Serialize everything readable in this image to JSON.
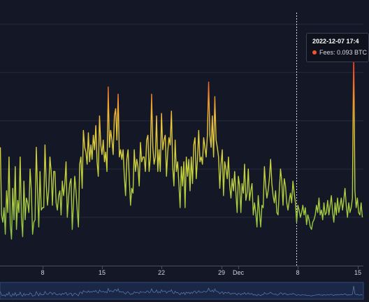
{
  "chart_data": {
    "type": "line",
    "x_axis_ticks": [
      "8",
      "15",
      "22",
      "29",
      "Dec",
      "8",
      "15"
    ],
    "series": [
      {
        "name": "Fees",
        "unit": "BTC",
        "values": [
          0.049,
          0.021,
          0.018,
          0.024,
          0.013,
          0.031,
          0.022,
          0.045,
          0.017,
          0.011,
          0.032,
          0.019,
          0.041,
          0.015,
          0.027,
          0.022,
          0.045,
          0.02,
          0.012,
          0.035,
          0.019,
          0.028,
          0.026,
          0.022,
          0.04,
          0.031,
          0.013,
          0.018,
          0.019,
          0.049,
          0.031,
          0.016,
          0.039,
          0.023,
          0.024,
          0.024,
          0.05,
          0.034,
          0.025,
          0.031,
          0.045,
          0.039,
          0.025,
          0.039,
          0.039,
          0.026,
          0.023,
          0.029,
          0.031,
          0.021,
          0.035,
          0.029,
          0.034,
          0.043,
          0.02,
          0.028,
          0.034,
          0.036,
          0.015,
          0.026,
          0.037,
          0.031,
          0.023,
          0.016,
          0.042,
          0.045,
          0.032,
          0.056,
          0.049,
          0.047,
          0.042,
          0.055,
          0.043,
          0.05,
          0.044,
          0.054,
          0.048,
          0.058,
          0.043,
          0.037,
          0.062,
          0.05,
          0.046,
          0.052,
          0.043,
          0.047,
          0.039,
          0.074,
          0.049,
          0.056,
          0.052,
          0.046,
          0.062,
          0.065,
          0.052,
          0.071,
          0.045,
          0.048,
          0.044,
          0.048,
          0.037,
          0.029,
          0.044,
          0.048,
          0.036,
          0.025,
          0.032,
          0.03,
          0.048,
          0.039,
          0.044,
          0.041,
          0.033,
          0.051,
          0.043,
          0.045,
          0.045,
          0.039,
          0.052,
          0.054,
          0.039,
          0.045,
          0.071,
          0.049,
          0.042,
          0.045,
          0.062,
          0.039,
          0.048,
          0.039,
          0.063,
          0.048,
          0.052,
          0.054,
          0.037,
          0.047,
          0.053,
          0.05,
          0.064,
          0.041,
          0.033,
          0.052,
          0.039,
          0.043,
          0.034,
          0.024,
          0.041,
          0.033,
          0.043,
          0.024,
          0.045,
          0.037,
          0.044,
          0.031,
          0.045,
          0.034,
          0.05,
          0.053,
          0.036,
          0.044,
          0.056,
          0.043,
          0.045,
          0.042,
          0.053,
          0.049,
          0.045,
          0.054,
          0.076,
          0.054,
          0.049,
          0.062,
          0.045,
          0.07,
          0.052,
          0.049,
          0.045,
          0.032,
          0.042,
          0.048,
          0.029,
          0.043,
          0.04,
          0.036,
          0.045,
          0.033,
          0.028,
          0.036,
          0.031,
          0.039,
          0.03,
          0.022,
          0.037,
          0.033,
          0.022,
          0.034,
          0.03,
          0.042,
          0.027,
          0.03,
          0.04,
          0.027,
          0.031,
          0.034,
          0.021,
          0.026,
          0.022,
          0.016,
          0.029,
          0.022,
          0.016,
          0.025,
          0.024,
          0.041,
          0.033,
          0.028,
          0.031,
          0.036,
          0.044,
          0.034,
          0.029,
          0.026,
          0.031,
          0.022,
          0.021,
          0.031,
          0.04,
          0.035,
          0.025,
          0.036,
          0.033,
          0.026,
          0.023,
          0.027,
          0.03,
          0.026,
          0.035,
          0.03,
          0.026,
          0.018,
          0.025,
          0.023,
          0.02,
          0.022,
          0.025,
          0.021,
          0.024,
          0.017,
          0.021,
          0.019,
          0.016,
          0.015,
          0.018,
          0.019,
          0.021,
          0.025,
          0.022,
          0.028,
          0.021,
          0.023,
          0.019,
          0.026,
          0.021,
          0.022,
          0.027,
          0.021,
          0.025,
          0.029,
          0.022,
          0.018,
          0.026,
          0.021,
          0.028,
          0.022,
          0.025,
          0.028,
          0.023,
          0.027,
          0.032,
          0.025,
          0.02,
          0.026,
          0.022,
          0.024,
          0.028,
          0.093,
          0.031,
          0.024,
          0.028,
          0.022,
          0.021,
          0.026,
          0.02
        ]
      }
    ],
    "ylim": [
      0,
      0.11
    ],
    "grid": true,
    "crosshair_position_fraction": 0.815,
    "tooltip": {
      "title": "2022-12-07 17:4",
      "label": "Fees: 0.093 BTC",
      "dot_color": "#f0552b"
    },
    "color_scale": {
      "low": "#7fc241",
      "mid": "#f2d23c",
      "high": "#f06a23",
      "peak": "#e9361d"
    }
  }
}
